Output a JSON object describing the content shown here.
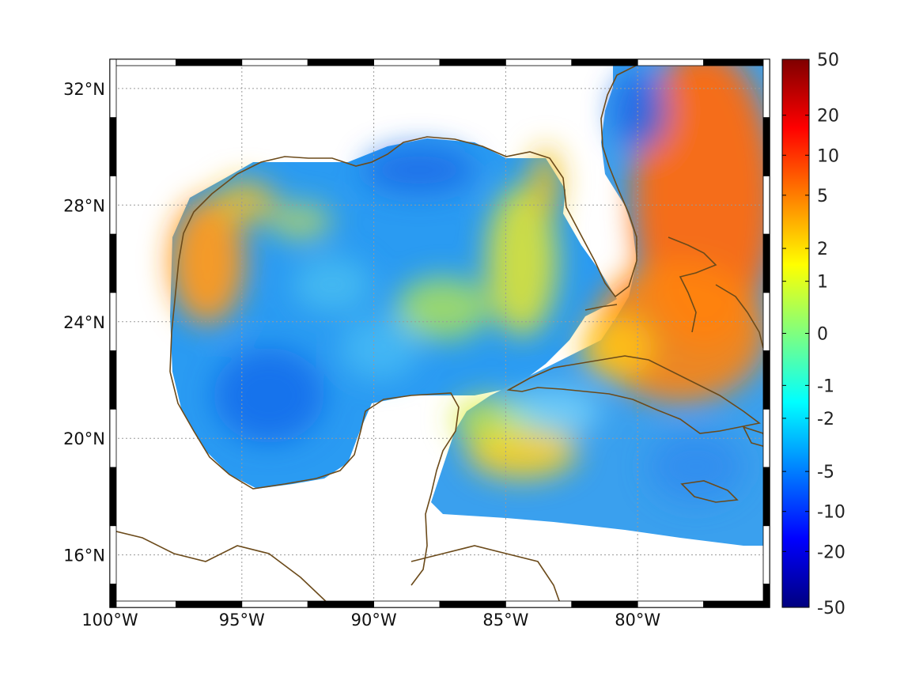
{
  "map": {
    "lon_range": [
      -100,
      -75
    ],
    "lat_range": [
      14.2,
      33
    ],
    "lon_ticks": [
      {
        "lon": -100,
        "label": "100°W"
      },
      {
        "lon": -95,
        "label": "95°W"
      },
      {
        "lon": -90,
        "label": "90°W"
      },
      {
        "lon": -85,
        "label": "85°W"
      },
      {
        "lon": -80,
        "label": "80°W"
      }
    ],
    "lat_ticks": [
      {
        "lat": 32,
        "label": "32°N"
      },
      {
        "lat": 28,
        "label": "28°N"
      },
      {
        "lat": 24,
        "label": "24°N"
      },
      {
        "lat": 20,
        "label": "20°N"
      },
      {
        "lat": 16,
        "label": "16°N"
      }
    ],
    "grid": true,
    "coastline_color": "#6b4a1a"
  },
  "colorbar": {
    "colormap": "jet",
    "ticks": [
      "50",
      "20",
      "10",
      "5",
      "2",
      "1",
      "0",
      "-1",
      "-2",
      "-5",
      "-10",
      "-20",
      "-50"
    ]
  }
}
